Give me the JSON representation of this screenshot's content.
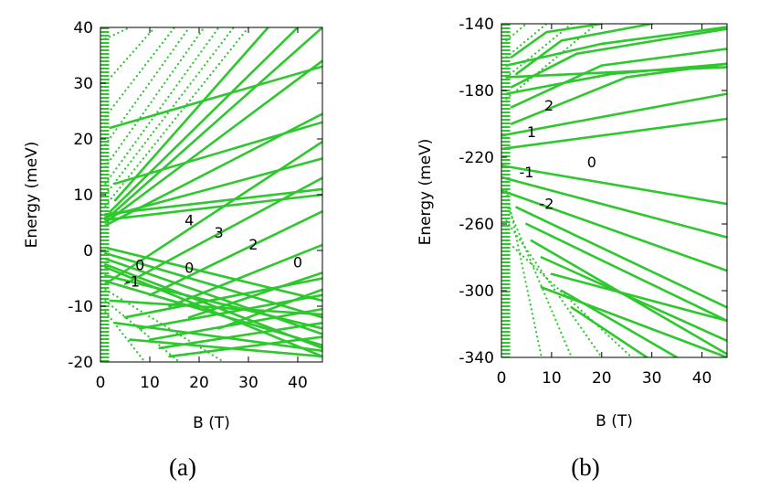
{
  "colors": {
    "series": "#2ec82e",
    "axis": "#000000"
  },
  "chart_data": [
    {
      "type": "line",
      "caption": "(a)",
      "xlabel": "B (T)",
      "ylabel": "Energy (meV)",
      "xlim": [
        0,
        45
      ],
      "ylim": [
        -20,
        40
      ],
      "xticks": [
        0,
        10,
        20,
        30,
        40
      ],
      "yticks": [
        -20,
        -10,
        0,
        10,
        20,
        30,
        40
      ],
      "grid": false,
      "annotations": [
        {
          "text": "4",
          "x": 18,
          "y": 4.5
        },
        {
          "text": "3",
          "x": 24,
          "y": 2.3
        },
        {
          "text": "2",
          "x": 31,
          "y": 0.2
        },
        {
          "text": "0",
          "x": 40,
          "y": -3.0
        },
        {
          "text": "0",
          "x": 18,
          "y": -4.0
        },
        {
          "text": "0",
          "x": 8,
          "y": -3.5
        },
        {
          "text": "-1",
          "x": 6.5,
          "y": -6.5
        }
      ],
      "series": [
        {
          "values": [
            [
              1,
              4.5
            ],
            [
              45,
              24.5
            ]
          ]
        },
        {
          "values": [
            [
              1,
              5.0
            ],
            [
              45,
              34.0
            ]
          ]
        },
        {
          "values": [
            [
              1,
              5.5
            ],
            [
              45,
              40.0
            ]
          ]
        },
        {
          "values": [
            [
              2,
              7.0
            ],
            [
              40,
              40.0
            ]
          ]
        },
        {
          "values": [
            [
              3,
              9.0
            ],
            [
              34,
              40.0
            ]
          ]
        },
        {
          "values": [
            [
              1,
              6.0
            ],
            [
              45,
              16.5
            ]
          ]
        },
        {
          "values": [
            [
              1,
              6.5
            ],
            [
              45,
              11.0
            ]
          ]
        },
        {
          "values": [
            [
              1,
              5.5
            ],
            [
              45,
              10.0
            ]
          ]
        },
        {
          "values": [
            [
              2,
              22.0
            ],
            [
              45,
              33.0
            ]
          ]
        },
        {
          "values": [
            [
              3,
              12.0
            ],
            [
              45,
              23.0
            ]
          ]
        },
        {
          "values": [
            [
              1,
              -6.0
            ],
            [
              45,
              19.5
            ]
          ]
        },
        {
          "values": [
            [
              5,
              -6.0
            ],
            [
              45,
              13.0
            ]
          ]
        },
        {
          "values": [
            [
              10,
              -8.0
            ],
            [
              45,
              7.0
            ]
          ]
        },
        {
          "values": [
            [
              14,
              -10.0
            ],
            [
              45,
              1.0
            ]
          ]
        },
        {
          "values": [
            [
              18,
              -12.0
            ],
            [
              45,
              -4.0
            ]
          ]
        },
        {
          "values": [
            [
              24,
              -14.0
            ],
            [
              45,
              -7.0
            ]
          ]
        },
        {
          "values": [
            [
              1,
              0.5
            ],
            [
              45,
              -9.0
            ]
          ]
        },
        {
          "values": [
            [
              1,
              -0.5
            ],
            [
              45,
              -12.0
            ]
          ]
        },
        {
          "values": [
            [
              1,
              -1.5
            ],
            [
              45,
              -15.0
            ]
          ]
        },
        {
          "values": [
            [
              1,
              -2.5
            ],
            [
              45,
              -17.5
            ]
          ]
        },
        {
          "values": [
            [
              1,
              -3.0
            ],
            [
              45,
              -19.0
            ]
          ]
        },
        {
          "values": [
            [
              1,
              -4.5
            ],
            [
              45,
              -14.0
            ]
          ]
        },
        {
          "values": [
            [
              1,
              -5.5
            ],
            [
              45,
              -17.0
            ]
          ]
        },
        {
          "values": [
            [
              5,
              -12.0
            ],
            [
              45,
              -5.0
            ]
          ]
        },
        {
          "values": [
            [
              8,
              -14.0
            ],
            [
              45,
              -8.0
            ]
          ]
        },
        {
          "values": [
            [
              10,
              -16.0
            ],
            [
              45,
              -10.5
            ]
          ]
        },
        {
          "values": [
            [
              12,
              -17.5
            ],
            [
              45,
              -13.0
            ]
          ]
        },
        {
          "values": [
            [
              14,
              -19.0
            ],
            [
              45,
              -15.5
            ]
          ]
        },
        {
          "values": [
            [
              6,
              -16.0
            ],
            [
              45,
              -19.0
            ]
          ]
        },
        {
          "values": [
            [
              3,
              -13.0
            ],
            [
              45,
              -18.0
            ]
          ]
        },
        {
          "values": [
            [
              2,
              -9.0
            ],
            [
              45,
              -11.5
            ]
          ]
        }
      ],
      "dotted_series": [
        {
          "values": [
            [
              1,
              38.0
            ],
            [
              6,
              40.0
            ]
          ]
        },
        {
          "values": [
            [
              1,
              30.0
            ],
            [
              11,
              40.0
            ]
          ]
        },
        {
          "values": [
            [
              1,
              24.0
            ],
            [
              15,
              40.0
            ]
          ]
        },
        {
          "values": [
            [
              1,
              19.0
            ],
            [
              18,
              40.0
            ]
          ]
        },
        {
          "values": [
            [
              1,
              15.0
            ],
            [
              21,
              40.0
            ]
          ]
        },
        {
          "values": [
            [
              1,
              12.0
            ],
            [
              24,
              40.0
            ]
          ]
        },
        {
          "values": [
            [
              1,
              10.0
            ],
            [
              27,
              40.0
            ]
          ]
        },
        {
          "values": [
            [
              1,
              8.0
            ],
            [
              30,
              40.0
            ]
          ]
        },
        {
          "values": [
            [
              1,
              -9.0
            ],
            [
              16,
              -20.0
            ]
          ]
        },
        {
          "values": [
            [
              1,
              -7.0
            ],
            [
              25,
              -20.0
            ]
          ]
        },
        {
          "values": [
            [
              1,
              -11.0
            ],
            [
              9,
              -20.0
            ]
          ]
        }
      ]
    },
    {
      "type": "line",
      "caption": "(b)",
      "xlabel": "B (T)",
      "ylabel": "Energy (meV)",
      "xlim": [
        0,
        45
      ],
      "ylim": [
        -340,
        -140
      ],
      "xticks": [
        0,
        10,
        20,
        30,
        40
      ],
      "yticks": [
        -340,
        -300,
        -260,
        -220,
        -180,
        -140
      ],
      "grid": false,
      "annotations": [
        {
          "text": "2",
          "x": 9.5,
          "y": -192
        },
        {
          "text": "1",
          "x": 6,
          "y": -208
        },
        {
          "text": "0",
          "x": 18,
          "y": -226
        },
        {
          "text": "-1",
          "x": 5,
          "y": -232
        },
        {
          "text": "-2",
          "x": 9,
          "y": -251
        }
      ],
      "series": [
        {
          "values": [
            [
              0,
              -207
            ],
            [
              45,
              -182
            ]
          ]
        },
        {
          "values": [
            [
              0,
              -215
            ],
            [
              45,
              -197
            ]
          ]
        },
        {
          "values": [
            [
              0,
              -225
            ],
            [
              45,
              -248
            ]
          ]
        },
        {
          "values": [
            [
              0,
              -232
            ],
            [
              45,
              -268
            ]
          ]
        },
        {
          "values": [
            [
              0,
              -240
            ],
            [
              45,
              -288
            ]
          ]
        },
        {
          "values": [
            [
              3,
              -250
            ],
            [
              45,
              -310
            ]
          ]
        },
        {
          "values": [
            [
              5,
              -260
            ],
            [
              45,
              -318
            ]
          ]
        },
        {
          "values": [
            [
              6,
              -270
            ],
            [
              45,
              -338
            ]
          ]
        },
        {
          "values": [
            [
              8,
              -280
            ],
            [
              45,
              -330
            ]
          ]
        },
        {
          "values": [
            [
              10,
              -290
            ],
            [
              45,
              -318
            ]
          ]
        },
        {
          "values": [
            [
              8,
              -298
            ],
            [
              45,
              -340
            ]
          ]
        },
        {
          "values": [
            [
              12,
              -300
            ],
            [
              35,
              -340
            ]
          ]
        },
        {
          "values": [
            [
              14,
              -310
            ],
            [
              29,
              -340
            ]
          ]
        },
        {
          "values": [
            [
              2,
              -200
            ],
            [
              25,
              -172
            ],
            [
              45,
              -164
            ]
          ]
        },
        {
          "values": [
            [
              2,
              -190
            ],
            [
              20,
              -165
            ],
            [
              45,
              -155
            ]
          ]
        },
        {
          "values": [
            [
              2,
              -178
            ],
            [
              15,
              -158
            ],
            [
              45,
              -143
            ]
          ]
        },
        {
          "values": [
            [
              3,
              -170
            ],
            [
              12,
              -150
            ],
            [
              30,
              -140
            ]
          ]
        },
        {
          "values": [
            [
              2,
              -160
            ],
            [
              9,
              -145
            ],
            [
              20,
              -140
            ]
          ]
        },
        {
          "values": [
            [
              1,
              -165
            ],
            [
              20,
              -152
            ],
            [
              45,
              -142
            ]
          ]
        },
        {
          "values": [
            [
              1,
              -172
            ],
            [
              30,
              -168
            ],
            [
              45,
              -166
            ]
          ]
        },
        {
          "values": [
            [
              1,
              -182
            ],
            [
              22,
              -170
            ],
            [
              45,
              -164
            ]
          ]
        }
      ],
      "dotted_series": [
        {
          "values": [
            [
              1,
              -150
            ],
            [
              5,
              -140
            ]
          ]
        },
        {
          "values": [
            [
              1,
              -160
            ],
            [
              9,
              -140
            ]
          ]
        },
        {
          "values": [
            [
              1,
              -172
            ],
            [
              14,
              -140
            ]
          ]
        },
        {
          "values": [
            [
              1,
              -185
            ],
            [
              19,
              -140
            ]
          ]
        },
        {
          "values": [
            [
              1,
              -240
            ],
            [
              8,
              -340
            ]
          ]
        },
        {
          "values": [
            [
              1,
              -248
            ],
            [
              14,
              -340
            ]
          ]
        },
        {
          "values": [
            [
              1,
              -258
            ],
            [
              20,
              -340
            ]
          ]
        },
        {
          "values": [
            [
              1,
              -270
            ],
            [
              26,
              -340
            ]
          ]
        }
      ]
    }
  ]
}
